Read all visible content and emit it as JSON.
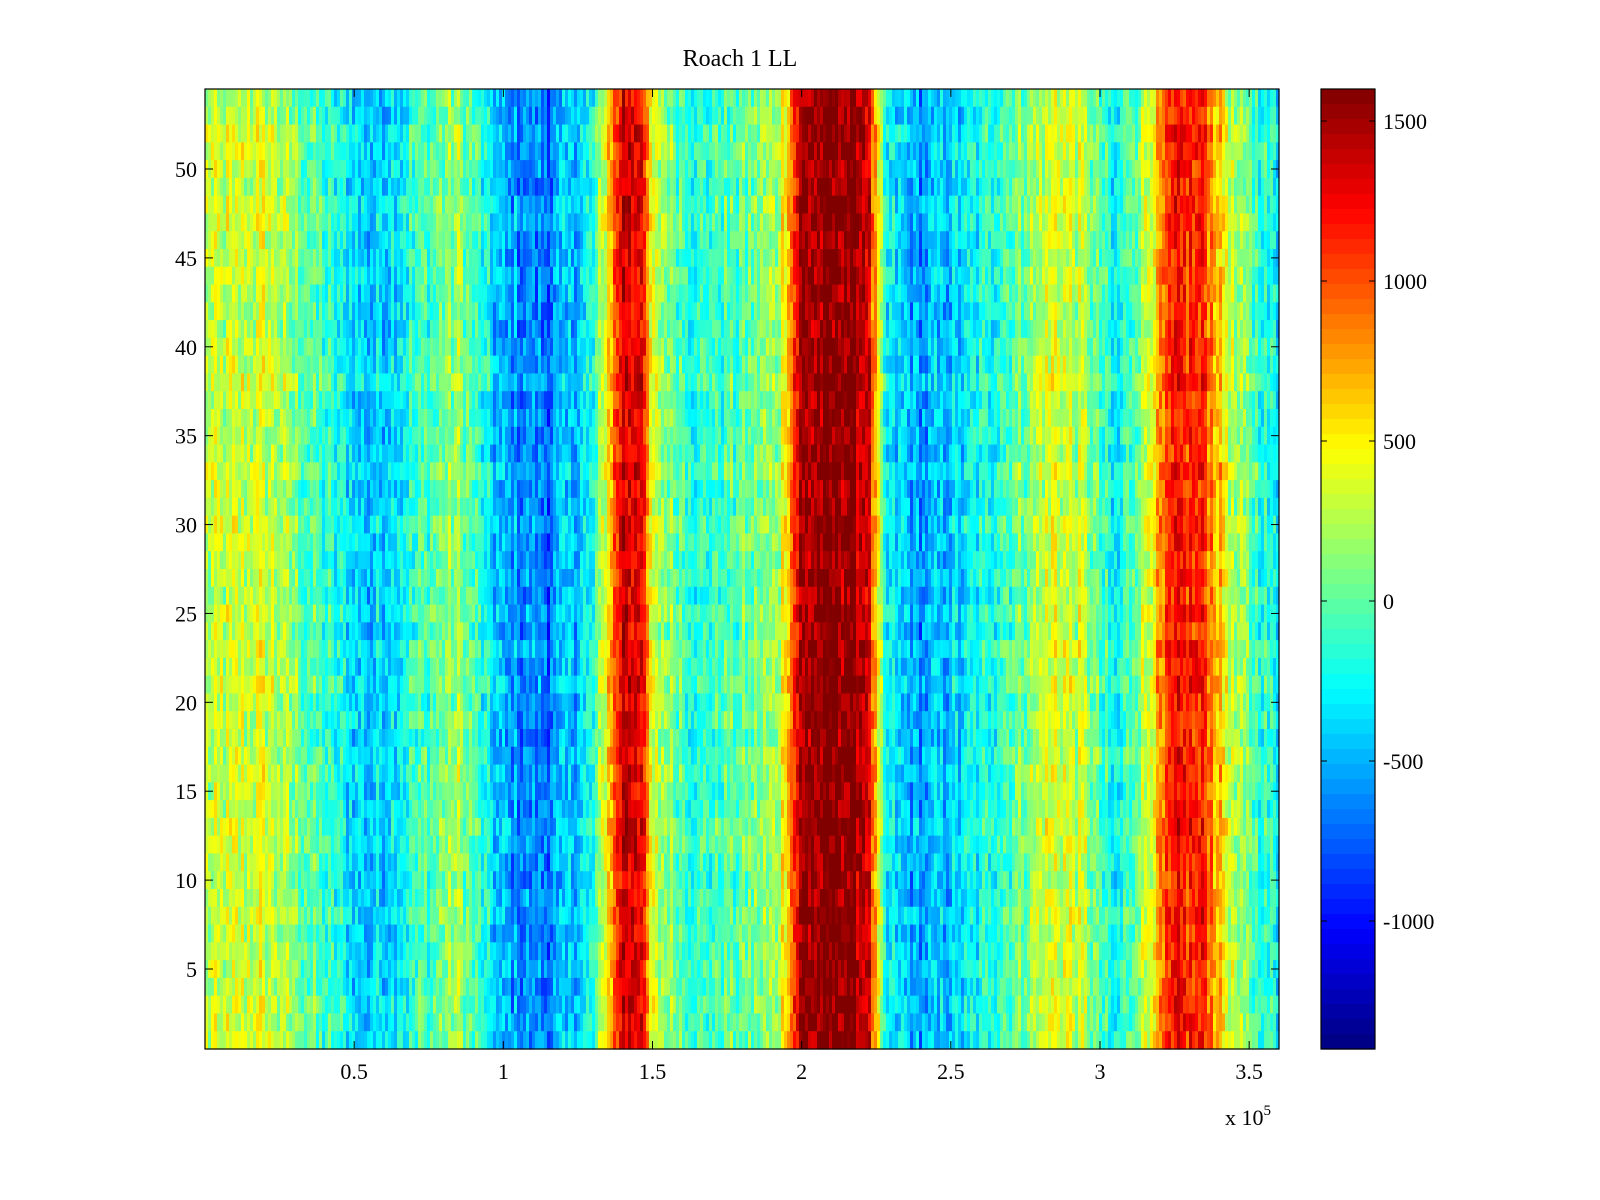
{
  "chart_data": {
    "type": "heatmap",
    "title": "Roach 1 LL",
    "xlabel": "",
    "ylabel": "",
    "x_exponent_label": {
      "base": "x 10",
      "exponent": "5"
    },
    "xlim": [
      0,
      360000
    ],
    "ylim": [
      0.5,
      54.5
    ],
    "x_ticks": [
      50000,
      100000,
      150000,
      200000,
      250000,
      300000,
      350000
    ],
    "x_tick_labels": [
      "0.5",
      "1",
      "1.5",
      "2",
      "2.5",
      "3",
      "3.5"
    ],
    "y_ticks": [
      5,
      10,
      15,
      20,
      25,
      30,
      35,
      40,
      45,
      50
    ],
    "y_tick_labels": [
      "5",
      "10",
      "15",
      "20",
      "25",
      "30",
      "35",
      "40",
      "45",
      "50"
    ],
    "rows": 54,
    "colormap": "jet",
    "clim": [
      -1400,
      1600
    ],
    "colorbar_ticks": [
      1500,
      1000,
      500,
      0,
      -500,
      -1000
    ],
    "colorbar_tick_labels": [
      "1500",
      "1000",
      "500",
      "0",
      "-500",
      "-1000"
    ],
    "column_profile": [
      {
        "x": 0,
        "value": 250
      },
      {
        "x": 20000,
        "value": 350
      },
      {
        "x": 35000,
        "value": 0
      },
      {
        "x": 55000,
        "value": -450
      },
      {
        "x": 70000,
        "value": -150
      },
      {
        "x": 85000,
        "value": 200
      },
      {
        "x": 100000,
        "value": -550
      },
      {
        "x": 115000,
        "value": -650
      },
      {
        "x": 130000,
        "value": -250
      },
      {
        "x": 140000,
        "value": 1400
      },
      {
        "x": 146000,
        "value": 1350
      },
      {
        "x": 150000,
        "value": 300
      },
      {
        "x": 165000,
        "value": -150
      },
      {
        "x": 180000,
        "value": 0
      },
      {
        "x": 192000,
        "value": 200
      },
      {
        "x": 200000,
        "value": 1500
      },
      {
        "x": 215000,
        "value": 1600
      },
      {
        "x": 222000,
        "value": 1450
      },
      {
        "x": 228000,
        "value": -300
      },
      {
        "x": 240000,
        "value": -550
      },
      {
        "x": 255000,
        "value": -350
      },
      {
        "x": 270000,
        "value": 0
      },
      {
        "x": 285000,
        "value": 400
      },
      {
        "x": 295000,
        "value": 250
      },
      {
        "x": 305000,
        "value": -350
      },
      {
        "x": 315000,
        "value": 300
      },
      {
        "x": 325000,
        "value": 1150
      },
      {
        "x": 335000,
        "value": 1100
      },
      {
        "x": 345000,
        "value": 200
      },
      {
        "x": 360000,
        "value": -300
      }
    ],
    "noise_amplitude": 350
  }
}
